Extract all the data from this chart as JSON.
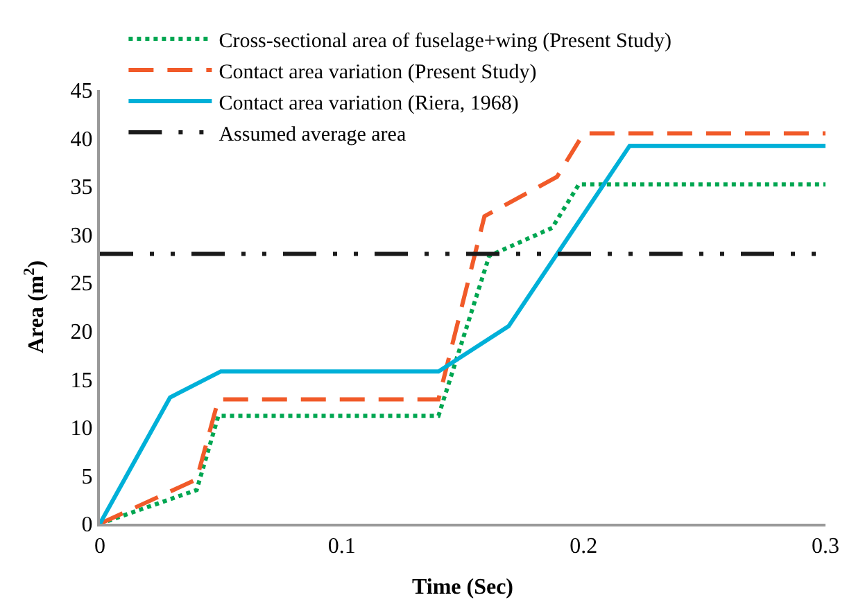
{
  "chart_data": {
    "type": "line",
    "xlabel": "Time (Sec)",
    "ylabel": "Area (m$^{2}$)",
    "xlim": [
      0,
      0.3
    ],
    "xticks": [
      0,
      0.1,
      0.2,
      0.3
    ],
    "ylim": [
      0,
      45
    ],
    "yticks": [
      0,
      5,
      10,
      15,
      20,
      25,
      30,
      35,
      40,
      45
    ],
    "legend": "top left",
    "marker": "none",
    "series": [
      {
        "name": "Cross-sectional area of fuselage+wing (Present Study)",
        "color": "#00a651",
        "line_style": "dotted",
        "x": [
          0,
          0.04,
          0.049,
          0.14,
          0.161,
          0.187,
          0.198,
          0.3
        ],
        "values": [
          0,
          3.5,
          11.2,
          11.2,
          27.8,
          30.7,
          35.2,
          35.2
        ]
      },
      {
        "name": "Contact area variation (Present Study)",
        "color": "#f15a29",
        "line_style": "dashed",
        "x": [
          0,
          0.04,
          0.049,
          0.14,
          0.159,
          0.189,
          0.2,
          0.3
        ],
        "values": [
          0,
          4.6,
          12.9,
          12.9,
          31.9,
          36,
          40.5,
          40.5
        ]
      },
      {
        "name": "Contact area variation (Riera, 1968)",
        "color": "#00b0d8",
        "line_style": "solid",
        "x": [
          0,
          0.029,
          0.05,
          0.14,
          0.169,
          0.219,
          0.3
        ],
        "values": [
          0,
          13.1,
          15.8,
          15.8,
          20.5,
          39.2,
          39.2
        ]
      },
      {
        "name": "Assumed average area",
        "color": "#1a1a1a",
        "line_style": "dashdotdot",
        "x": [
          0,
          0.3
        ],
        "values": [
          28,
          28
        ]
      }
    ]
  }
}
